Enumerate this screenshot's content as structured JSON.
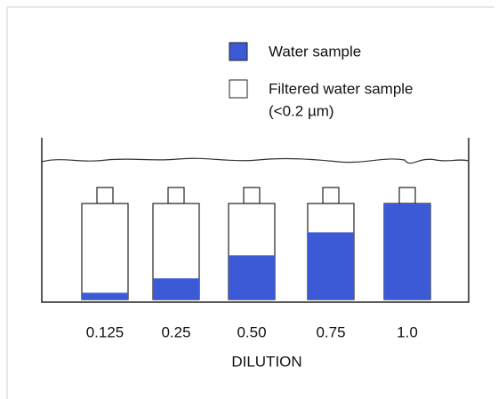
{
  "chart_data": {
    "type": "bar",
    "legend": [
      {
        "label": "Water sample",
        "color": "#3c5ad6"
      },
      {
        "label": "Filtered water sample",
        "note": "(<0.2 µm)",
        "color": "#ffffff"
      }
    ],
    "categories": [
      "0.125",
      "0.25",
      "0.50",
      "0.75",
      "1.0"
    ],
    "values": [
      0.07,
      0.22,
      0.46,
      0.7,
      1.0
    ],
    "color": "#3c5ad6",
    "ylim": [
      0,
      1
    ],
    "xlabel": "DILUTION"
  }
}
